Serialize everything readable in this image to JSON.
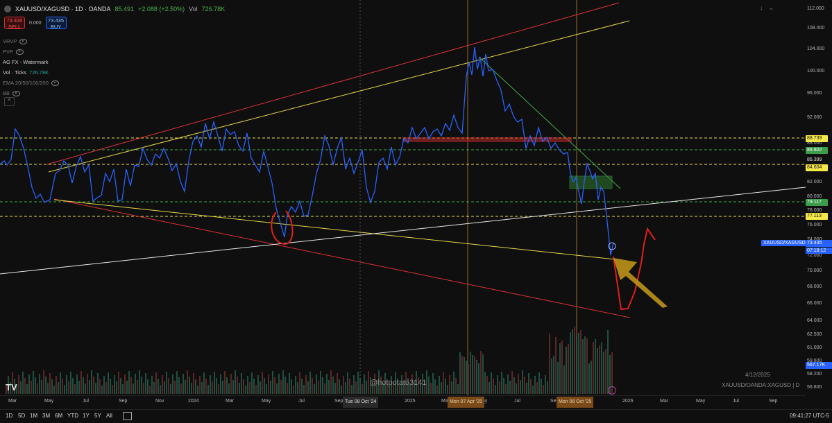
{
  "header": {
    "title": "XAUUSD/XAGUSD · 1D · OANDA",
    "last": "85.491",
    "change": "+2.088 (+2.50%)",
    "vol_label": "Vol",
    "vol": "726.78K"
  },
  "trade": {
    "sell_price": "73.435",
    "sell_label": "SELL",
    "spread": "0.000",
    "buy_price": "73.435",
    "buy_label": "BUY"
  },
  "indicators": [
    {
      "label": "VRVP",
      "value": ""
    },
    {
      "label": "PVP",
      "value": ""
    },
    {
      "label": "AG FX - Watermark",
      "value": ""
    },
    {
      "label": "Vol · Ticks",
      "value": "726.78K"
    },
    {
      "label": "EMA 20/50/100/200",
      "value": ""
    },
    {
      "label": "BB",
      "value": ""
    }
  ],
  "collapse_symbol": "^",
  "price_axis": {
    "ticks": [
      "112.000",
      "108.000",
      "104.000",
      "100.000",
      "96.000",
      "92.000",
      "88.000",
      "82.000",
      "80.000",
      "78.000",
      "76.000",
      "74.000",
      "72.000",
      "70.000",
      "68.000",
      "66.000",
      "64.000",
      "62.500",
      "61.000",
      "59.600",
      "58.200",
      "56.800"
    ],
    "tags": {
      "yellow_top": "88.739",
      "green_top": "86.802",
      "current": "85.399",
      "yellow_mid": "84.604",
      "green_mid": "79.117",
      "yellow_low": "77.113",
      "last_price": "73.435",
      "countdown": "07:18:12",
      "volume": "567.17K"
    }
  },
  "symbol_label": "XAUUSD/XAGUSD",
  "time_axis": {
    "ticks": [
      "Mar",
      "May",
      "Jul",
      "Sep",
      "Nov",
      "2024",
      "Mar",
      "May",
      "Jul",
      "Sep",
      "2025",
      "Mar",
      "May",
      "Jul",
      "Sep",
      "2026",
      "Mar",
      "May",
      "Jul",
      "Sep"
    ],
    "markers": [
      "Tue 08 Oct '24",
      "Mon 07 Apr '25",
      "Mon 06 Oct '25"
    ]
  },
  "bottom_bar": {
    "ranges": [
      "1D",
      "5D",
      "1M",
      "3M",
      "6M",
      "YTD",
      "1Y",
      "5Y",
      "All"
    ],
    "clock": "09:41:27 UTC-5"
  },
  "overlay": {
    "watermark": "@hotpotato3141",
    "date": "4/12/2025",
    "source": "XAUUSD/OANDA:XAGUSD | D",
    "logo": "TV"
  },
  "colors": {
    "price_line": "#2962ff",
    "channel_red": "#e0323a",
    "trend_yellow": "#e6d84a",
    "trend_white": "#e8e8e8",
    "trend_green": "#3fae4a",
    "annotation_red": "#e0201a",
    "arrow_gold": "#c89a1a"
  }
}
